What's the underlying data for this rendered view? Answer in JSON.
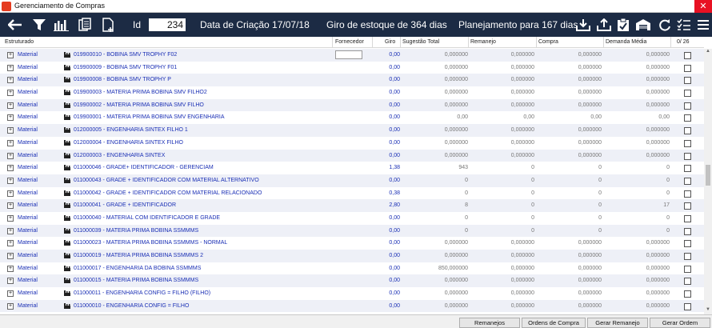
{
  "window": {
    "title": "Gerenciamento de Compras",
    "close_glyph": "✕"
  },
  "toolbar": {
    "id_label": "Id",
    "id_value": "234",
    "created": "Data de Criação 17/07/18",
    "turnover": "Giro de estoque de  364 dias",
    "planning": "Planejamento para 167 dias"
  },
  "columns": {
    "structured": "Estruturado",
    "supplier": "Fornecedor",
    "turnover": "Giro",
    "suggestion": "Sugestão Total",
    "reallocation": "Remanejo",
    "purchase": "Compra",
    "avg_demand": "Demanda Média",
    "selected_count": "0/ 26"
  },
  "rows": [
    {
      "tipo": "Material",
      "desc": "019900010 - BOBINA SMV TROPHY F02",
      "giro": "0,00",
      "sug": "0,000000",
      "rem": "0,000000",
      "comp": "0,000000",
      "dem": "0,000000"
    },
    {
      "tipo": "Material",
      "desc": "019900009 - BOBINA SMV TROPHY F01",
      "giro": "0,00",
      "sug": "0,000000",
      "rem": "0,000000",
      "comp": "0,000000",
      "dem": "0,000000"
    },
    {
      "tipo": "Material",
      "desc": "019900008 - BOBINA SMV TROPHY P",
      "giro": "0,00",
      "sug": "0,000000",
      "rem": "0,000000",
      "comp": "0,000000",
      "dem": "0,000000"
    },
    {
      "tipo": "Material",
      "desc": "019900003 - MATERIA PRIMA BOBINA SMV FILHO2",
      "giro": "0,00",
      "sug": "0,000000",
      "rem": "0,000000",
      "comp": "0,000000",
      "dem": "0,000000"
    },
    {
      "tipo": "Material",
      "desc": "019900002 - MATERIA PRIMA BOBINA SMV FILHO",
      "giro": "0,00",
      "sug": "0,000000",
      "rem": "0,000000",
      "comp": "0,000000",
      "dem": "0,000000"
    },
    {
      "tipo": "Material",
      "desc": "019900001 - MATERIA PRIMA BOBINA SMV ENGENHARIA",
      "giro": "0,00",
      "sug": "0,00",
      "rem": "0,00",
      "comp": "0,00",
      "dem": "0,00"
    },
    {
      "tipo": "Material",
      "desc": "012000005 - ENGENHARIA SINTEX FILHO 1",
      "giro": "0,00",
      "sug": "0,000000",
      "rem": "0,000000",
      "comp": "0,000000",
      "dem": "0,000000"
    },
    {
      "tipo": "Material",
      "desc": "012000004 - ENGENHARIA SINTEX FILHO",
      "giro": "0,00",
      "sug": "0,000000",
      "rem": "0,000000",
      "comp": "0,000000",
      "dem": "0,000000"
    },
    {
      "tipo": "Material",
      "desc": "012000003 - ENGENHARIA SINTEX",
      "giro": "0,00",
      "sug": "0,000000",
      "rem": "0,000000",
      "comp": "0,000000",
      "dem": "0,000000"
    },
    {
      "tipo": "Material",
      "desc": "011000046 - GRADE+ IDENTIFICADOR - GERENCIAM",
      "giro": "1,38",
      "sug": "943",
      "rem": "0",
      "comp": "0",
      "dem": "0"
    },
    {
      "tipo": "Material",
      "desc": "011000043 - GRADE + IDENTIFICADOR COM MATERIAL ALTERNATIVO",
      "giro": "0,00",
      "sug": "0",
      "rem": "0",
      "comp": "0",
      "dem": "0"
    },
    {
      "tipo": "Material",
      "desc": "011000042 - GRADE + IDENTIFICADOR COM MATERIAL RELACIONADO",
      "giro": "0,38",
      "sug": "0",
      "rem": "0",
      "comp": "0",
      "dem": "0"
    },
    {
      "tipo": "Material",
      "desc": "011000041 - GRADE + IDENTIFICADOR",
      "giro": "2,80",
      "sug": "8",
      "rem": "0",
      "comp": "0",
      "dem": "17"
    },
    {
      "tipo": "Material",
      "desc": "011000040 - MATERIAL COM IDENTIFICADOR E GRADE",
      "giro": "0,00",
      "sug": "0",
      "rem": "0",
      "comp": "0",
      "dem": "0"
    },
    {
      "tipo": "Material",
      "desc": "011000039 - MATERIA PRIMA BOBINA SSMMMS",
      "giro": "0,00",
      "sug": "0",
      "rem": "0",
      "comp": "0",
      "dem": "0"
    },
    {
      "tipo": "Material",
      "desc": "011000023 - MATERIA PRIMA BOBINA SSMMMS - NORMAL",
      "giro": "0,00",
      "sug": "0,000000",
      "rem": "0,000000",
      "comp": "0,000000",
      "dem": "0,000000"
    },
    {
      "tipo": "Material",
      "desc": "011000019 - MATERIA PRIMA BOBINA SSMMMS 2",
      "giro": "0,00",
      "sug": "0,000000",
      "rem": "0,000000",
      "comp": "0,000000",
      "dem": "0,000000"
    },
    {
      "tipo": "Material",
      "desc": "011000017 - ENGENHARIA DA  BOBINA SSMMMS",
      "giro": "0,00",
      "sug": "850,000000",
      "rem": "0,000000",
      "comp": "0,000000",
      "dem": "0,000000"
    },
    {
      "tipo": "Material",
      "desc": "011000015 - MATERIA PRIMA BOBINA SSMMMS",
      "giro": "0,00",
      "sug": "0,000000",
      "rem": "0,000000",
      "comp": "0,000000",
      "dem": "0,000000"
    },
    {
      "tipo": "Material",
      "desc": "011000011 - ENGENHARIA CONFIG = FILHO (FILHO)",
      "giro": "0,00",
      "sug": "0,000000",
      "rem": "0,000000",
      "comp": "0,000000",
      "dem": "0,000000"
    },
    {
      "tipo": "Material",
      "desc": "011000010 - ENGENHARIA CONFIG = FILHO",
      "giro": "0,00",
      "sug": "0,000000",
      "rem": "0,000000",
      "comp": "0,000000",
      "dem": "0,000000"
    }
  ],
  "footer": {
    "remanejos": "Remanejos",
    "ordens": "Ordens de Compra",
    "gerar_remanejo": "Gerar Remanejo",
    "gerar_ordem": "Gerar Ordem"
  }
}
